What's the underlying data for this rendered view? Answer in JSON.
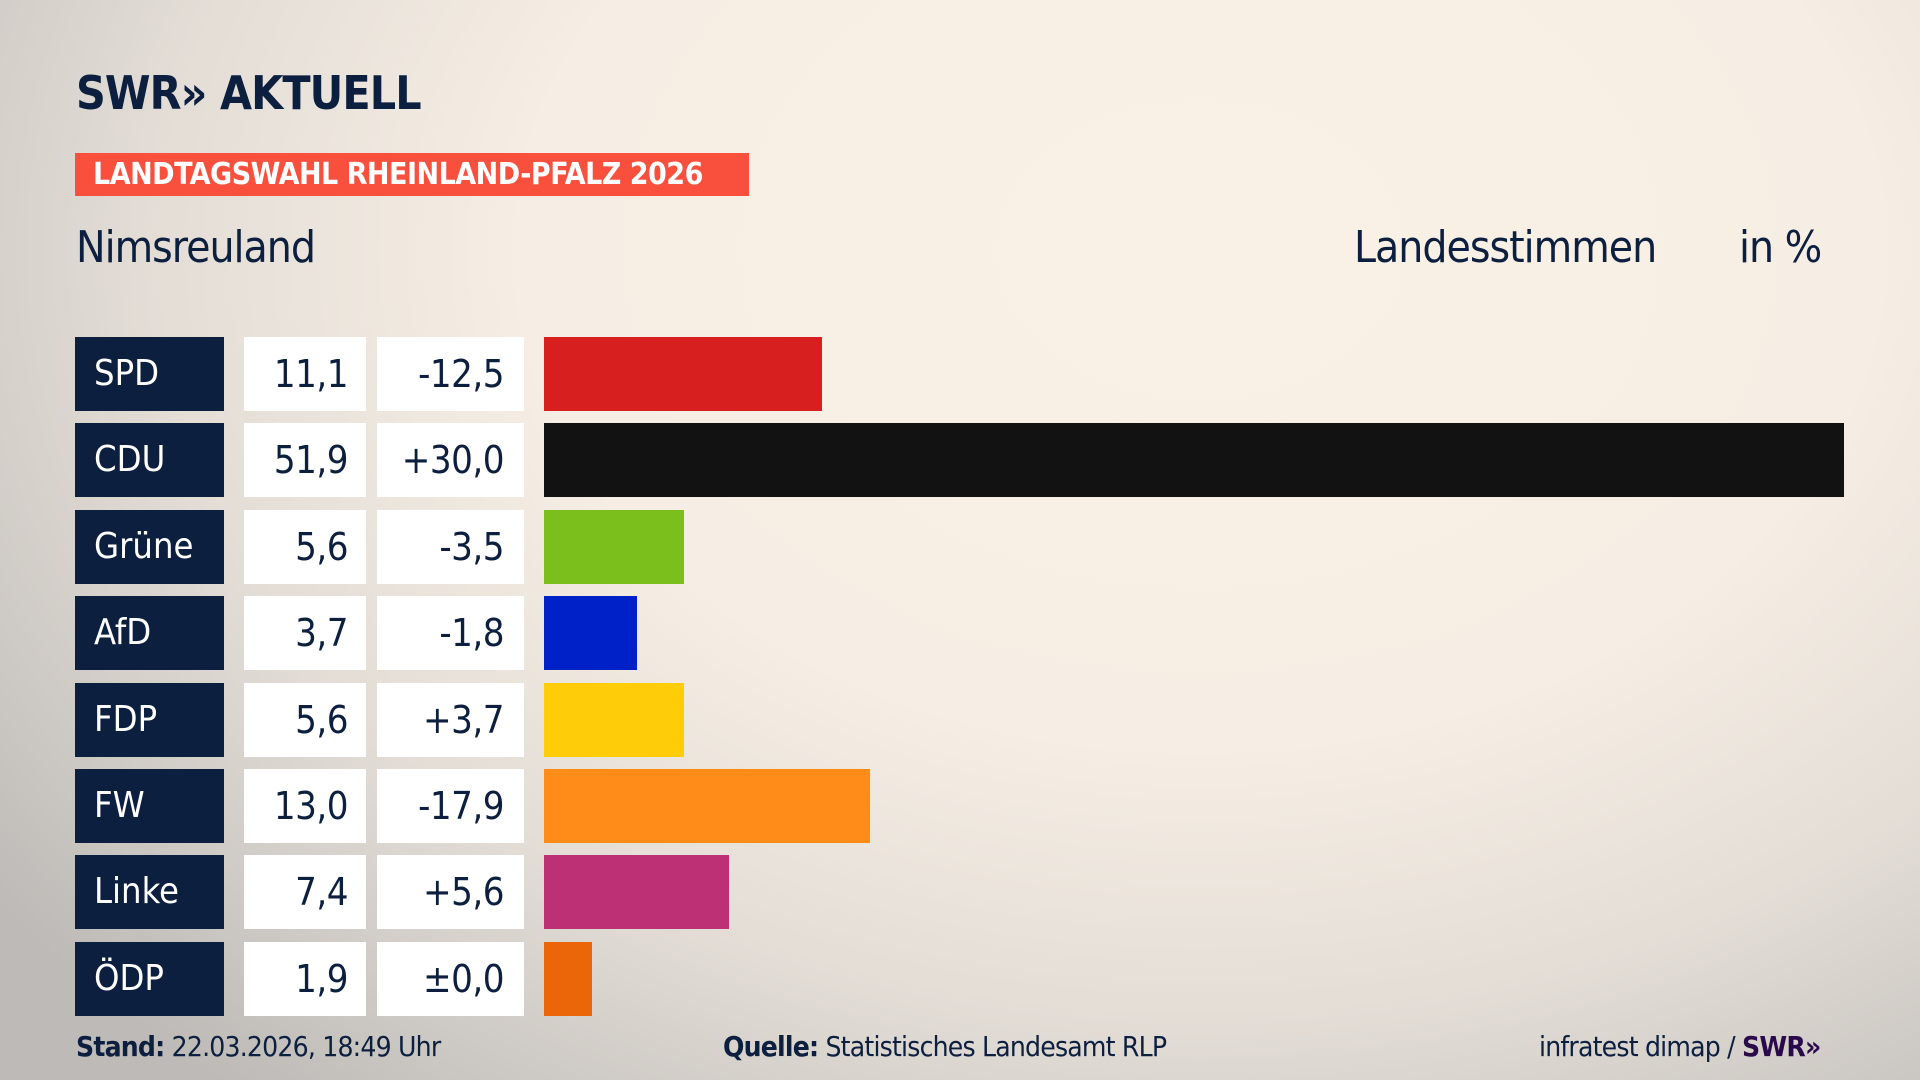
{
  "header": {
    "logo": "SWR» AKTUELL",
    "banner": "LANDTAGSWAHL RHEINLAND-PFALZ 2026",
    "region": "Nimsreuland",
    "metric": "Landesstimmen",
    "unit": "in %"
  },
  "colors": {
    "navy": "#0c1f3f",
    "banner": "#f9503e"
  },
  "chart_data": {
    "type": "bar",
    "orientation": "horizontal",
    "xlim": [
      0,
      51.9
    ],
    "categories": [
      "SPD",
      "CDU",
      "Grüne",
      "AfD",
      "FDP",
      "FW",
      "Linke",
      "ÖDP"
    ],
    "values": [
      11.1,
      51.9,
      5.6,
      3.7,
      5.6,
      13.0,
      7.4,
      1.9
    ],
    "value_labels": [
      "11,1",
      "51,9",
      "5,6",
      "3,7",
      "5,6",
      "13,0",
      "7,4",
      "1,9"
    ],
    "diff_labels": [
      "-12,5",
      "+30,0",
      "-3,5",
      "-1,8",
      "+3,7",
      "-17,9",
      "+5,6",
      "±0,0"
    ],
    "diffs": [
      -12.5,
      30.0,
      -3.5,
      -1.8,
      3.7,
      -17.9,
      5.6,
      0.0
    ],
    "colors": [
      "#d71f1f",
      "#121212",
      "#7abf1c",
      "#0021c8",
      "#ffcc0a",
      "#ff8c19",
      "#bd3075",
      "#eb6608"
    ]
  },
  "footer": {
    "stand_label": "Stand:",
    "stand": "22.03.2026, 18:49 Uhr",
    "quelle_label": "Quelle:",
    "quelle": "Statistisches Landesamt RLP",
    "credit": "infratest dimap /",
    "credit_logo": "SWR»"
  }
}
